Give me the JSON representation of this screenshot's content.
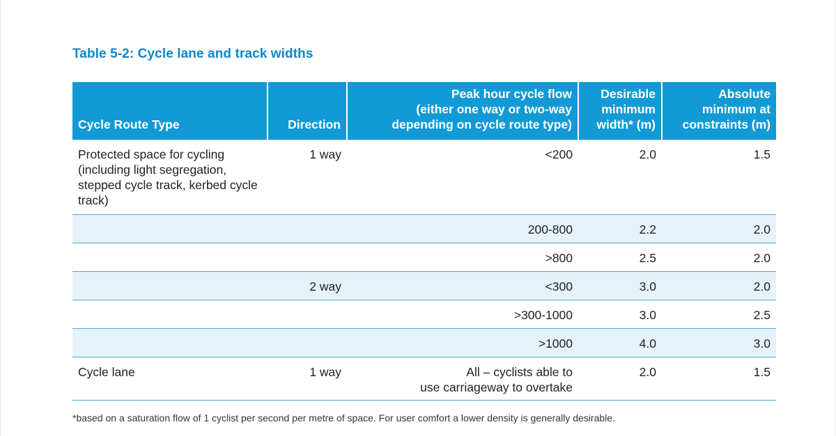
{
  "title": "Table 5-2: Cycle lane and track widths",
  "table": {
    "headers": [
      "Cycle Route Type",
      "Direction",
      "Peak hour cycle flow\n(either one way or two-way\ndepending on cycle route type)",
      "Desirable\nminimum\nwidth* (m)",
      "Absolute\nminimum at\nconstraints (m)"
    ],
    "rows": [
      {
        "type": "Protected space for cycling (including light segregation, stepped cycle track, kerbed cycle track)",
        "direction": "1 way",
        "flow": "<200",
        "desirable": "2.0",
        "absolute": "1.5"
      },
      {
        "type": "",
        "direction": "",
        "flow": "200-800",
        "desirable": "2.2",
        "absolute": "2.0"
      },
      {
        "type": "",
        "direction": "",
        "flow": ">800",
        "desirable": "2.5",
        "absolute": "2.0"
      },
      {
        "type": "",
        "direction": "2 way",
        "flow": "<300",
        "desirable": "3.0",
        "absolute": "2.0"
      },
      {
        "type": "",
        "direction": "",
        "flow": ">300-1000",
        "desirable": "3.0",
        "absolute": "2.5"
      },
      {
        "type": "",
        "direction": "",
        "flow": ">1000",
        "desirable": "4.0",
        "absolute": "3.0"
      },
      {
        "type": "Cycle lane",
        "direction": "1 way",
        "flow": "All – cyclists able to\nuse carriageway to overtake",
        "desirable": "2.0",
        "absolute": "1.5"
      }
    ]
  },
  "footnote": "*based on a saturation flow of 1 cyclist per second per metre of space. For user comfort a lower density is generally desirable."
}
